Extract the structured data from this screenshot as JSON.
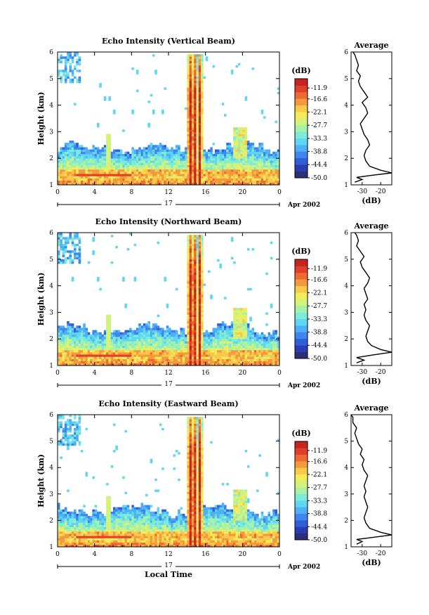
{
  "chart_data": [
    {
      "type": "heatmap",
      "title": "Echo Intensity (Vertical Beam)",
      "ylabel": "Height (km)",
      "xlabel": "",
      "x_ticks": [
        "0",
        "4",
        "8",
        "12",
        "16",
        "20",
        "0"
      ],
      "y_ticks": [
        "1",
        "2",
        "3",
        "4",
        "5",
        "6"
      ],
      "xlim": [
        0,
        24
      ],
      "ylim": [
        1,
        6
      ],
      "date_label": "17",
      "date_suffix": "Apr 2002",
      "colorbar": {
        "unit": "(dB)",
        "ticks": [
          "-11.9",
          "-16.6",
          "-22.1",
          "-27.7",
          "-33.3",
          "-38.8",
          "-44.4",
          "-50.0"
        ],
        "range": [
          -50.0,
          -8.0
        ]
      },
      "average_panel": {
        "title": "Average",
        "xlabel": "(dB)",
        "x_ticks": [
          "-30",
          "-20"
        ],
        "xlim": [
          -36,
          -14
        ],
        "profile": [
          [
            1.1,
            -34
          ],
          [
            1.2,
            -30
          ],
          [
            1.28,
            -33
          ],
          [
            1.35,
            -26
          ],
          [
            1.45,
            -14
          ],
          [
            1.55,
            -20
          ],
          [
            1.7,
            -26
          ],
          [
            1.9,
            -28
          ],
          [
            2.1,
            -29
          ],
          [
            2.3,
            -28
          ],
          [
            2.5,
            -26
          ],
          [
            2.7,
            -27
          ],
          [
            2.9,
            -29
          ],
          [
            3.1,
            -30
          ],
          [
            3.3,
            -31
          ],
          [
            3.5,
            -29
          ],
          [
            3.7,
            -27
          ],
          [
            3.9,
            -28
          ],
          [
            4.1,
            -30
          ],
          [
            4.3,
            -27
          ],
          [
            4.5,
            -29
          ],
          [
            4.7,
            -31
          ],
          [
            4.9,
            -32
          ],
          [
            5.1,
            -31
          ],
          [
            5.3,
            -33
          ],
          [
            5.5,
            -32
          ],
          [
            5.7,
            -33
          ],
          [
            5.9,
            -34
          ],
          [
            6.0,
            -35
          ]
        ]
      }
    },
    {
      "type": "heatmap",
      "title": "Echo Intensity (Northward Beam)",
      "ylabel": "Height (km)",
      "xlabel": "",
      "x_ticks": [
        "0",
        "4",
        "8",
        "12",
        "16",
        "20",
        "0"
      ],
      "y_ticks": [
        "1",
        "2",
        "3",
        "4",
        "5",
        "6"
      ],
      "xlim": [
        0,
        24
      ],
      "ylim": [
        1,
        6
      ],
      "date_label": "17",
      "date_suffix": "Apr 2002",
      "colorbar": {
        "unit": "(dB)",
        "ticks": [
          "-11.9",
          "-16.6",
          "-22.1",
          "-27.7",
          "-33.3",
          "-38.8",
          "-44.4",
          "-50.0"
        ],
        "range": [
          -50.0,
          -8.0
        ]
      },
      "average_panel": {
        "title": "Average",
        "xlabel": "(dB)",
        "x_ticks": [
          "-30",
          "-20"
        ],
        "xlim": [
          -36,
          -14
        ],
        "profile": [
          [
            1.1,
            -33
          ],
          [
            1.2,
            -29
          ],
          [
            1.3,
            -33
          ],
          [
            1.4,
            -24
          ],
          [
            1.5,
            -14
          ],
          [
            1.6,
            -20
          ],
          [
            1.75,
            -25
          ],
          [
            1.9,
            -27
          ],
          [
            2.1,
            -28
          ],
          [
            2.3,
            -27
          ],
          [
            2.5,
            -26
          ],
          [
            2.7,
            -28
          ],
          [
            2.9,
            -29
          ],
          [
            3.1,
            -28
          ],
          [
            3.3,
            -29
          ],
          [
            3.5,
            -27
          ],
          [
            3.7,
            -28
          ],
          [
            3.9,
            -29
          ],
          [
            4.1,
            -27
          ],
          [
            4.3,
            -26
          ],
          [
            4.5,
            -28
          ],
          [
            4.7,
            -30
          ],
          [
            4.9,
            -31
          ],
          [
            5.1,
            -29
          ],
          [
            5.3,
            -31
          ],
          [
            5.5,
            -33
          ],
          [
            5.7,
            -32
          ],
          [
            5.9,
            -33
          ],
          [
            6.0,
            -34
          ]
        ]
      }
    },
    {
      "type": "heatmap",
      "title": "Echo Intensity (Eastward Beam)",
      "ylabel": "Height (km)",
      "xlabel": "Local Time",
      "x_ticks": [
        "0",
        "4",
        "8",
        "12",
        "16",
        "20",
        "0"
      ],
      "y_ticks": [
        "1",
        "2",
        "3",
        "4",
        "5",
        "6"
      ],
      "xlim": [
        0,
        24
      ],
      "ylim": [
        1,
        6
      ],
      "date_label": "17",
      "date_suffix": "Apr 2002",
      "colorbar": {
        "unit": "(dB)",
        "ticks": [
          "-11.9",
          "-16.6",
          "-22.1",
          "-27.7",
          "-33.3",
          "-38.8",
          "-44.4",
          "-50.0"
        ],
        "range": [
          -50.0,
          -8.0
        ]
      },
      "average_panel": {
        "title": "Average",
        "xlabel": "(dB)",
        "x_ticks": [
          "-30",
          "-20"
        ],
        "xlim": [
          -36,
          -14
        ],
        "profile": [
          [
            1.1,
            -33
          ],
          [
            1.2,
            -30
          ],
          [
            1.28,
            -33
          ],
          [
            1.35,
            -25
          ],
          [
            1.45,
            -14
          ],
          [
            1.55,
            -20
          ],
          [
            1.7,
            -26
          ],
          [
            1.9,
            -28
          ],
          [
            2.1,
            -29
          ],
          [
            2.3,
            -28
          ],
          [
            2.5,
            -27
          ],
          [
            2.7,
            -28
          ],
          [
            2.9,
            -29
          ],
          [
            3.1,
            -28
          ],
          [
            3.3,
            -29
          ],
          [
            3.5,
            -28
          ],
          [
            3.7,
            -27
          ],
          [
            3.9,
            -29
          ],
          [
            4.1,
            -30
          ],
          [
            4.3,
            -29
          ],
          [
            4.5,
            -31
          ],
          [
            4.7,
            -30
          ],
          [
            4.9,
            -32
          ],
          [
            5.1,
            -33
          ],
          [
            5.3,
            -34
          ],
          [
            5.5,
            -33
          ],
          [
            5.7,
            -35
          ],
          [
            5.9,
            -35
          ],
          [
            6.0,
            -36
          ]
        ]
      }
    }
  ],
  "colorscale": [
    "#2b2f7a",
    "#2a3cb0",
    "#2f5fd8",
    "#3d86f0",
    "#4fb0f5",
    "#5fd6f2",
    "#7cecd8",
    "#a6f2a8",
    "#d3f27a",
    "#f3ec5a",
    "#f8c94a",
    "#f59a3c",
    "#ee6a32",
    "#e0402b",
    "#c8241f"
  ]
}
